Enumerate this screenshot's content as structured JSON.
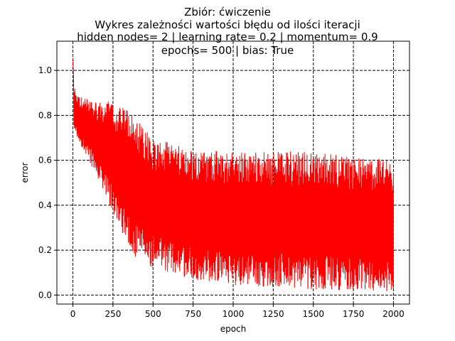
{
  "chart_data": {
    "type": "line",
    "title_lines": [
      "Zbiór: ćwiczenie",
      "Wykres zależności wartości błędu od ilości iteracji",
      "hidden nodes= 2 | learning rate= 0.2 | momentum= 0.9",
      "epochs= 500 | bias: True"
    ],
    "xlabel": "epoch",
    "ylabel": "error",
    "xlim": [
      -100,
      2100
    ],
    "ylim": [
      -0.04,
      1.13
    ],
    "xticks": [
      0,
      250,
      500,
      750,
      1000,
      1250,
      1500,
      1750,
      2000
    ],
    "yticks": [
      0.0,
      0.2,
      0.4,
      0.6,
      0.8,
      1.0
    ],
    "ytick_labels": [
      "0.0",
      "0.2",
      "0.4",
      "0.6",
      "0.8",
      "1.0"
    ],
    "grid": true,
    "grid_style": "dashed",
    "series": [
      {
        "color": "#ff0000",
        "x_start": 0,
        "x_end": 2000,
        "n_points": 2000,
        "envelope": {
          "x": [
            0,
            5,
            25,
            100,
            250,
            400,
            500,
            750,
            1000,
            1250,
            1500,
            1750,
            2000
          ],
          "upper": [
            1.07,
            0.95,
            0.89,
            0.87,
            0.86,
            0.8,
            0.7,
            0.65,
            0.64,
            0.64,
            0.64,
            0.62,
            0.6
          ],
          "lower": [
            0.8,
            0.74,
            0.7,
            0.6,
            0.36,
            0.15,
            0.12,
            0.07,
            0.045,
            0.035,
            0.025,
            0.02,
            0.015
          ]
        }
      }
    ]
  }
}
